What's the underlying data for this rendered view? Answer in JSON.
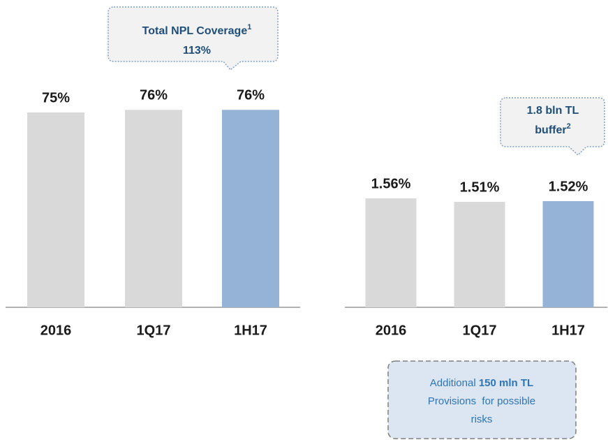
{
  "chart_data": [
    {
      "type": "bar",
      "categories": [
        "2016",
        "1Q17",
        "1H17"
      ],
      "values": [
        75,
        76,
        76
      ],
      "value_labels": [
        "75%",
        "76%",
        "76%"
      ],
      "colors": [
        "#d9d9d9",
        "#d9d9d9",
        "#95b3d7"
      ],
      "ylim": [
        0,
        100
      ],
      "callout": {
        "lines": [
          "Total NPL Coverage",
          "113%"
        ],
        "note": "1"
      }
    },
    {
      "type": "bar",
      "categories": [
        "2016",
        "1Q17",
        "1H17"
      ],
      "values": [
        1.56,
        1.51,
        1.52
      ],
      "value_labels": [
        "1.56%",
        "1.51%",
        "1.52%"
      ],
      "colors": [
        "#d9d9d9",
        "#d9d9d9",
        "#95b3d7"
      ],
      "ylim": [
        0,
        2
      ],
      "callout": {
        "lines": [
          "1.8 bln TL",
          "buffer"
        ],
        "note": "2"
      },
      "note_box": {
        "parts": [
          "Additional",
          "150 mln TL",
          "Provisions  for possible",
          "risks"
        ]
      }
    }
  ]
}
